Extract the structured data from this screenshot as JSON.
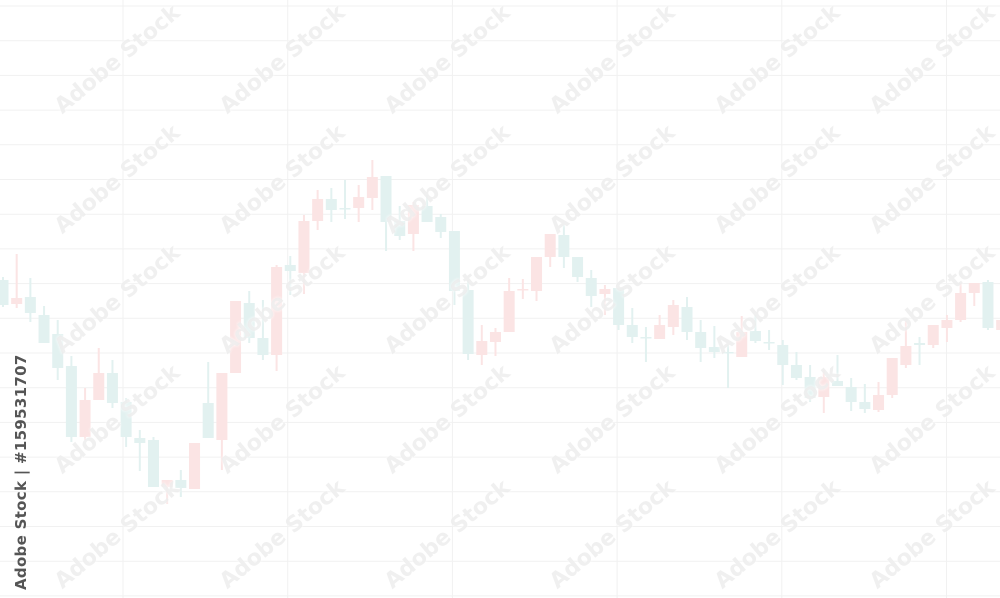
{
  "chart_data": {
    "type": "candlestick",
    "title": "",
    "xlabel": "",
    "ylabel": "",
    "grid": true,
    "axes_visible": false,
    "ylim": [
      0,
      60
    ],
    "colors": {
      "up": "#fbe4e4",
      "down": "#e2f1f0",
      "grid": "#f1f1f1"
    },
    "candles": [
      {
        "o": 32.0,
        "h": 32.3,
        "l": 29.3,
        "c": 29.5
      },
      {
        "o": 29.6,
        "h": 34.6,
        "l": 29.2,
        "c": 30.2
      },
      {
        "o": 30.3,
        "h": 32.2,
        "l": 27.8,
        "c": 28.7
      },
      {
        "o": 28.5,
        "h": 29.4,
        "l": 25.7,
        "c": 25.7
      },
      {
        "o": 26.6,
        "h": 28.0,
        "l": 22.0,
        "c": 23.2
      },
      {
        "o": 23.4,
        "h": 24.4,
        "l": 15.8,
        "c": 16.3
      },
      {
        "o": 16.3,
        "h": 21.2,
        "l": 16.0,
        "c": 20.0
      },
      {
        "o": 20.0,
        "h": 25.2,
        "l": 20.0,
        "c": 22.7
      },
      {
        "o": 22.7,
        "h": 24.0,
        "l": 19.2,
        "c": 19.7
      },
      {
        "o": 19.8,
        "h": 20.2,
        "l": 15.3,
        "c": 16.3
      },
      {
        "o": 16.2,
        "h": 17.0,
        "l": 12.9,
        "c": 15.7
      },
      {
        "o": 16.0,
        "h": 16.3,
        "l": 11.3,
        "c": 11.3
      },
      {
        "o": 11.3,
        "h": 12.0,
        "l": 9.6,
        "c": 12.0
      },
      {
        "o": 12.0,
        "h": 13.0,
        "l": 10.3,
        "c": 11.2
      },
      {
        "o": 11.1,
        "h": 15.7,
        "l": 11.1,
        "c": 15.7
      },
      {
        "o": 19.7,
        "h": 23.8,
        "l": 16.2,
        "c": 16.2
      },
      {
        "o": 16.0,
        "h": 22.7,
        "l": 13.0,
        "c": 22.7
      },
      {
        "o": 22.7,
        "h": 29.9,
        "l": 22.7,
        "c": 29.9
      },
      {
        "o": 29.7,
        "h": 30.9,
        "l": 25.7,
        "c": 26.2
      },
      {
        "o": 26.2,
        "h": 30.0,
        "l": 24.0,
        "c": 24.5
      },
      {
        "o": 24.5,
        "h": 33.5,
        "l": 22.9,
        "c": 33.3
      },
      {
        "o": 33.5,
        "h": 34.4,
        "l": 30.5,
        "c": 32.9
      },
      {
        "o": 32.7,
        "h": 38.5,
        "l": 30.6,
        "c": 37.9
      },
      {
        "o": 37.9,
        "h": 41.0,
        "l": 37.0,
        "c": 40.1
      },
      {
        "o": 40.1,
        "h": 41.2,
        "l": 37.8,
        "c": 39.0
      },
      {
        "o": 39.2,
        "h": 42.0,
        "l": 38.1,
        "c": 39.1
      },
      {
        "o": 39.2,
        "h": 41.5,
        "l": 37.8,
        "c": 40.3
      },
      {
        "o": 40.2,
        "h": 44.0,
        "l": 39.0,
        "c": 42.3
      },
      {
        "o": 42.4,
        "h": 42.4,
        "l": 34.9,
        "c": 37.8
      },
      {
        "o": 37.9,
        "h": 39.4,
        "l": 36.0,
        "c": 36.4
      },
      {
        "o": 36.6,
        "h": 39.8,
        "l": 34.9,
        "c": 39.5
      },
      {
        "o": 39.4,
        "h": 40.5,
        "l": 37.8,
        "c": 37.8
      },
      {
        "o": 38.3,
        "h": 38.6,
        "l": 36.2,
        "c": 36.8
      },
      {
        "o": 36.9,
        "h": 36.9,
        "l": 29.5,
        "c": 30.9
      },
      {
        "o": 31.0,
        "h": 32.0,
        "l": 24.0,
        "c": 24.6
      },
      {
        "o": 24.5,
        "h": 27.5,
        "l": 23.5,
        "c": 25.9
      },
      {
        "o": 25.8,
        "h": 27.2,
        "l": 24.4,
        "c": 26.8
      },
      {
        "o": 26.8,
        "h": 32.2,
        "l": 26.8,
        "c": 30.9
      },
      {
        "o": 31.0,
        "h": 32.1,
        "l": 30.1,
        "c": 31.1
      },
      {
        "o": 30.9,
        "h": 34.3,
        "l": 29.9,
        "c": 34.3
      },
      {
        "o": 34.3,
        "h": 36.6,
        "l": 33.3,
        "c": 36.6
      },
      {
        "o": 36.5,
        "h": 37.5,
        "l": 33.2,
        "c": 34.3
      },
      {
        "o": 34.3,
        "h": 34.3,
        "l": 31.8,
        "c": 32.3
      },
      {
        "o": 32.2,
        "h": 33.0,
        "l": 29.3,
        "c": 30.4
      },
      {
        "o": 30.6,
        "h": 31.5,
        "l": 28.5,
        "c": 31.1
      },
      {
        "o": 31.2,
        "h": 31.2,
        "l": 27.0,
        "c": 27.5
      },
      {
        "o": 27.5,
        "h": 29.2,
        "l": 25.7,
        "c": 26.3
      },
      {
        "o": 26.3,
        "h": 27.3,
        "l": 23.8,
        "c": 26.2
      },
      {
        "o": 26.1,
        "h": 28.5,
        "l": 26.1,
        "c": 27.5
      },
      {
        "o": 27.3,
        "h": 30.0,
        "l": 26.5,
        "c": 29.5
      },
      {
        "o": 29.3,
        "h": 30.3,
        "l": 26.0,
        "c": 26.8
      },
      {
        "o": 26.8,
        "h": 28.0,
        "l": 23.8,
        "c": 25.2
      },
      {
        "o": 25.3,
        "h": 27.4,
        "l": 24.2,
        "c": 24.8
      },
      {
        "o": 24.8,
        "h": 25.5,
        "l": 21.2,
        "c": 24.7
      },
      {
        "o": 24.3,
        "h": 28.4,
        "l": 24.3,
        "c": 26.8
      },
      {
        "o": 26.9,
        "h": 28.5,
        "l": 25.7,
        "c": 25.9
      },
      {
        "o": 25.8,
        "h": 27.0,
        "l": 25.0,
        "c": 25.7
      },
      {
        "o": 25.5,
        "h": 26.0,
        "l": 21.5,
        "c": 23.5
      },
      {
        "o": 23.5,
        "h": 24.8,
        "l": 22.0,
        "c": 22.2
      },
      {
        "o": 22.3,
        "h": 23.5,
        "l": 19.8,
        "c": 20.2
      },
      {
        "o": 20.3,
        "h": 23.0,
        "l": 18.7,
        "c": 22.3
      },
      {
        "o": 21.9,
        "h": 24.5,
        "l": 21.4,
        "c": 21.4
      },
      {
        "o": 21.3,
        "h": 22.2,
        "l": 18.9,
        "c": 19.8
      },
      {
        "o": 19.8,
        "h": 21.6,
        "l": 18.7,
        "c": 19.1
      },
      {
        "o": 19.0,
        "h": 21.8,
        "l": 18.8,
        "c": 20.5
      },
      {
        "o": 20.5,
        "h": 24.2,
        "l": 20.2,
        "c": 24.2
      },
      {
        "o": 23.5,
        "h": 27.9,
        "l": 23.2,
        "c": 25.4
      },
      {
        "o": 25.7,
        "h": 26.3,
        "l": 23.5,
        "c": 25.5
      },
      {
        "o": 25.5,
        "h": 27.5,
        "l": 25.2,
        "c": 27.5
      },
      {
        "o": 27.2,
        "h": 28.5,
        "l": 25.8,
        "c": 28.0
      },
      {
        "o": 28.0,
        "h": 31.7,
        "l": 27.8,
        "c": 30.7
      },
      {
        "o": 30.7,
        "h": 31.7,
        "l": 29.4,
        "c": 31.7
      },
      {
        "o": 31.8,
        "h": 32.0,
        "l": 27.0,
        "c": 27.2
      },
      {
        "o": 27.0,
        "h": 28.5,
        "l": 26.5,
        "c": 28.0
      }
    ]
  },
  "watermark": {
    "text": "Adobe Stock",
    "credit": "Adobe Stock | #159531707"
  }
}
